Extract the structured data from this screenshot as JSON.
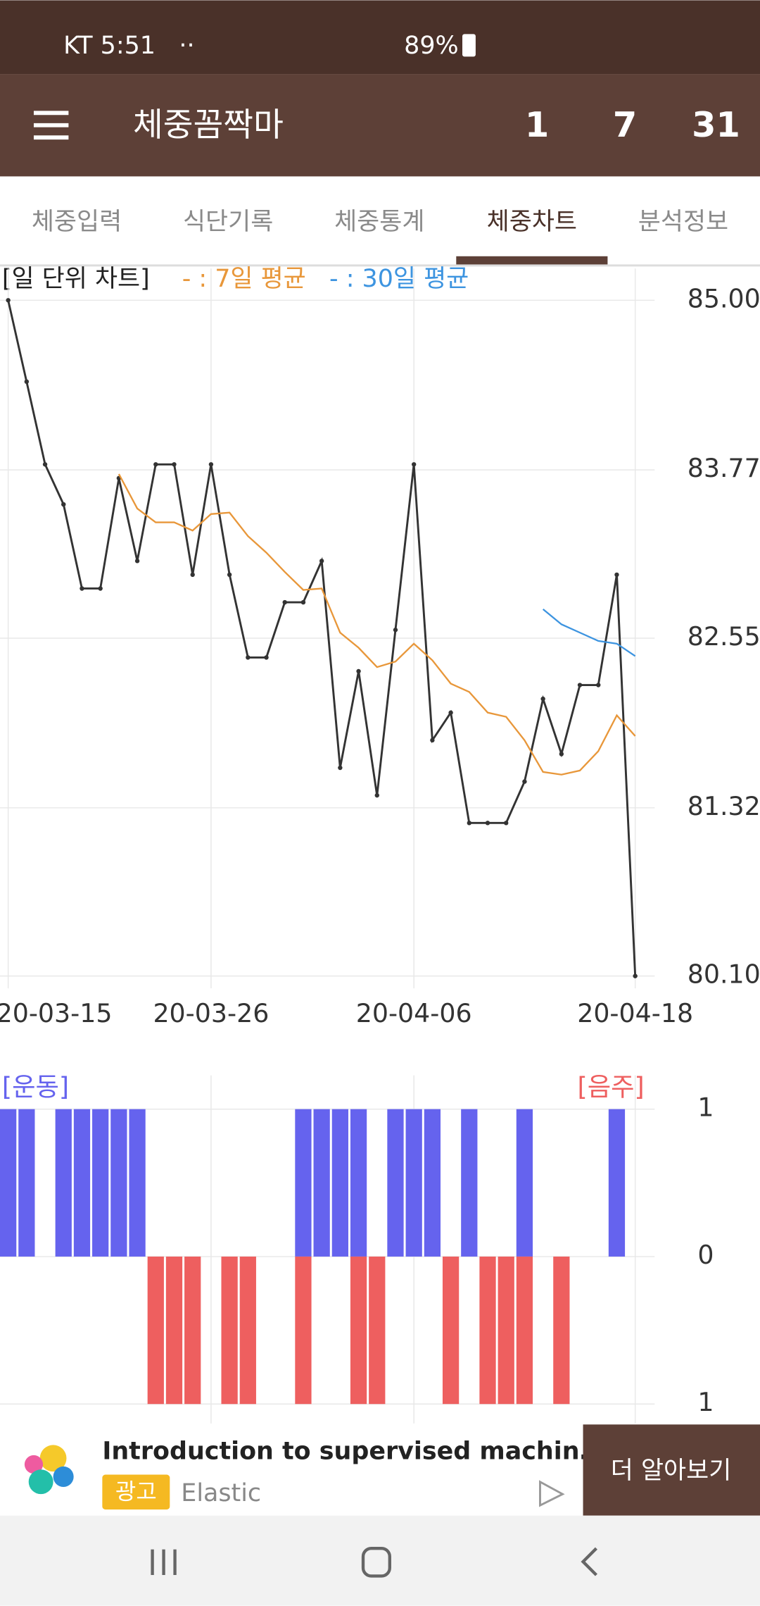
{
  "status_bar": {
    "carrier_time": "KT 5:51",
    "dots": "··",
    "battery": "89%"
  },
  "app_bar": {
    "title": "체중꼼짝마",
    "buttons": [
      "1",
      "7",
      "31"
    ]
  },
  "tabs": {
    "items": [
      "체중입력",
      "식단기록",
      "체중통계",
      "체중차트",
      "분석정보"
    ],
    "selected": 3
  },
  "chart_data": [
    {
      "type": "line",
      "title": "[일 단위 차트]",
      "x": [
        "20-03-15",
        "20-03-16",
        "20-03-17",
        "20-03-18",
        "20-03-19",
        "20-03-20",
        "20-03-21",
        "20-03-22",
        "20-03-23",
        "20-03-24",
        "20-03-25",
        "20-03-26",
        "20-03-27",
        "20-03-28",
        "20-03-29",
        "20-03-30",
        "20-03-31",
        "20-04-01",
        "20-04-02",
        "20-04-03",
        "20-04-04",
        "20-04-05",
        "20-04-06",
        "20-04-07",
        "20-04-08",
        "20-04-09",
        "20-04-10",
        "20-04-11",
        "20-04-12",
        "20-04-13",
        "20-04-14",
        "20-04-15",
        "20-04-16",
        "20-04-17",
        "20-04-18"
      ],
      "series": [
        {
          "color": "#333333",
          "markers": true,
          "values": [
            85.0,
            84.41,
            83.81,
            83.52,
            82.91,
            82.91,
            83.71,
            83.11,
            83.81,
            83.81,
            83.01,
            83.81,
            83.01,
            82.41,
            82.41,
            82.81,
            82.81,
            83.11,
            81.61,
            82.31,
            81.41,
            82.61,
            83.81,
            81.81,
            82.01,
            81.21,
            81.21,
            81.21,
            81.51,
            82.11,
            81.71,
            82.21,
            82.21,
            83.01,
            80.1
          ]
        },
        {
          "name": "- : 7일 평균",
          "color": "#E8973A",
          "values": [
            null,
            null,
            null,
            null,
            null,
            null,
            83.74,
            83.49,
            83.39,
            83.39,
            83.33,
            83.45,
            83.46,
            83.29,
            83.17,
            83.03,
            82.9,
            82.91,
            82.59,
            82.48,
            82.34,
            82.38,
            82.51,
            82.39,
            82.22,
            82.16,
            82.01,
            81.98,
            81.81,
            81.58,
            81.56,
            81.59,
            81.73,
            81.99,
            81.84
          ]
        },
        {
          "name": "- : 30일 평균",
          "color": "#3D94E0",
          "values": [
            null,
            null,
            null,
            null,
            null,
            null,
            null,
            null,
            null,
            null,
            null,
            null,
            null,
            null,
            null,
            null,
            null,
            null,
            null,
            null,
            null,
            null,
            null,
            null,
            null,
            null,
            null,
            null,
            null,
            82.76,
            82.65,
            82.59,
            82.53,
            82.51,
            82.42
          ]
        }
      ],
      "xlim": [
        "20-03-15",
        "20-04-18"
      ],
      "xticks": [
        "20-03-15",
        "20-03-26",
        "20-04-06",
        "20-04-18"
      ],
      "ylim": [
        80.1,
        85.0
      ],
      "yticks": [
        {
          "value": 80.1,
          "label": "80.10"
        },
        81.32,
        82.55,
        83.77,
        {
          "value": 85.0,
          "label": "85.00"
        }
      ],
      "grid": true
    },
    {
      "type": "bar",
      "x": [
        "20-03-15",
        "20-03-16",
        "20-03-17",
        "20-03-18",
        "20-03-19",
        "20-03-20",
        "20-03-21",
        "20-03-22",
        "20-03-23",
        "20-03-24",
        "20-03-25",
        "20-03-26",
        "20-03-27",
        "20-03-28",
        "20-03-29",
        "20-03-30",
        "20-03-31",
        "20-04-01",
        "20-04-02",
        "20-04-03",
        "20-04-04",
        "20-04-05",
        "20-04-06",
        "20-04-07",
        "20-04-08",
        "20-04-09",
        "20-04-10",
        "20-04-11",
        "20-04-12",
        "20-04-13",
        "20-04-14",
        "20-04-15",
        "20-04-16",
        "20-04-17",
        "20-04-18"
      ],
      "series": [
        {
          "name": "[운동]",
          "color": "#6563EE",
          "values": [
            1,
            1,
            0,
            1,
            1,
            1,
            1,
            1,
            0,
            0,
            0,
            0,
            0,
            0,
            0,
            0,
            1,
            1,
            1,
            1,
            0,
            1,
            1,
            1,
            0,
            1,
            0,
            0,
            1,
            0,
            0,
            0,
            0,
            1,
            0
          ]
        },
        {
          "name": "[음주]",
          "color": "#EE5F5F",
          "values": [
            0,
            0,
            0,
            0,
            0,
            0,
            0,
            0,
            -1,
            -1,
            -1,
            0,
            -1,
            -1,
            0,
            0,
            -1,
            0,
            0,
            -1,
            -1,
            0,
            0,
            0,
            -1,
            0,
            -1,
            -1,
            -1,
            0,
            -1,
            0,
            0,
            0,
            0
          ]
        }
      ],
      "xlim": [
        "20-03-15",
        "20-04-18"
      ],
      "xticks": [
        "20-03-26",
        "20-04-06",
        "20-04-18"
      ],
      "ylim": [
        -1,
        1
      ],
      "yticks": [
        {
          "value": -1,
          "label": "1"
        },
        0,
        1
      ],
      "grid": true
    }
  ],
  "ad": {
    "headline": "Introduction to supervised machin…",
    "badge": "광고",
    "advertiser": "Elastic",
    "button": "더 알아보기"
  }
}
